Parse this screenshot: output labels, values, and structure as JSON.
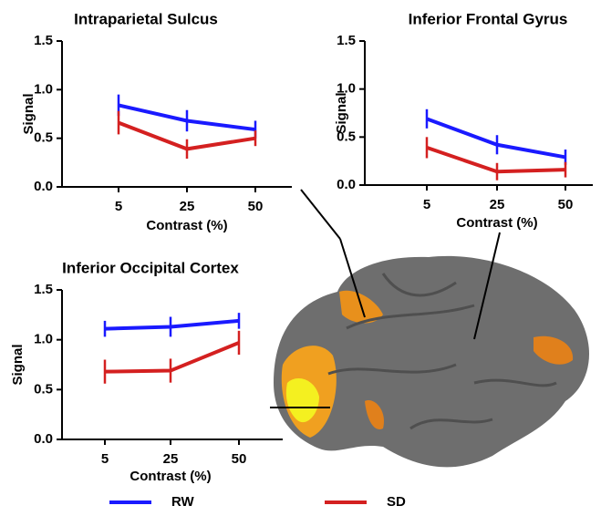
{
  "chart_data": [
    {
      "type": "line",
      "title": "Intraparietal Sulcus",
      "x_label": "Contrast (%)",
      "y_label": "Signal",
      "categories": [
        "5",
        "25",
        "50"
      ],
      "ylim": [
        0,
        1.5
      ],
      "yticks": [
        {
          "value": 0,
          "label": "0.0"
        },
        0.5,
        {
          "value": 1,
          "label": "1.0"
        },
        1.5
      ],
      "series": [
        {
          "name": "RW",
          "color": "#1a1aff",
          "values": [
            0.84,
            0.68,
            0.59
          ],
          "errors": [
            0.11,
            0.11,
            0.09
          ]
        },
        {
          "name": "SD",
          "color": "#d42020",
          "values": [
            0.66,
            0.39,
            0.5
          ],
          "errors": [
            0.12,
            0.1,
            0.08
          ]
        }
      ]
    },
    {
      "type": "line",
      "title": "Inferior Frontal Gyrus",
      "x_label": "Contrast (%)",
      "y_label": "Signal",
      "categories": [
        "5",
        "25",
        "50"
      ],
      "ylim": [
        0,
        1.5
      ],
      "yticks": [
        {
          "value": 0,
          "label": "0.0"
        },
        0.5,
        {
          "value": 1,
          "label": "1.0"
        },
        1.5
      ],
      "series": [
        {
          "name": "RW",
          "color": "#1a1aff",
          "values": [
            0.69,
            0.42,
            0.29
          ],
          "errors": [
            0.1,
            0.1,
            0.08
          ]
        },
        {
          "name": "SD",
          "color": "#d42020",
          "values": [
            0.39,
            0.14,
            0.16
          ],
          "errors": [
            0.11,
            0.09,
            0.08
          ]
        }
      ]
    },
    {
      "type": "line",
      "title": "Inferior Occipital Cortex",
      "x_label": "Contrast (%)",
      "y_label": "Signal",
      "categories": [
        "5",
        "25",
        "50"
      ],
      "ylim": [
        0,
        1.5
      ],
      "yticks": [
        {
          "value": 0,
          "label": "0.0"
        },
        0.5,
        {
          "value": 1,
          "label": "1.0"
        },
        1.5
      ],
      "series": [
        {
          "name": "RW",
          "color": "#1a1aff",
          "values": [
            1.11,
            1.13,
            1.19
          ],
          "errors": [
            0.08,
            0.1,
            0.08
          ]
        },
        {
          "name": "SD",
          "color": "#d42020",
          "values": [
            0.68,
            0.69,
            0.97
          ],
          "errors": [
            0.12,
            0.12,
            0.12
          ]
        }
      ]
    }
  ]
}
